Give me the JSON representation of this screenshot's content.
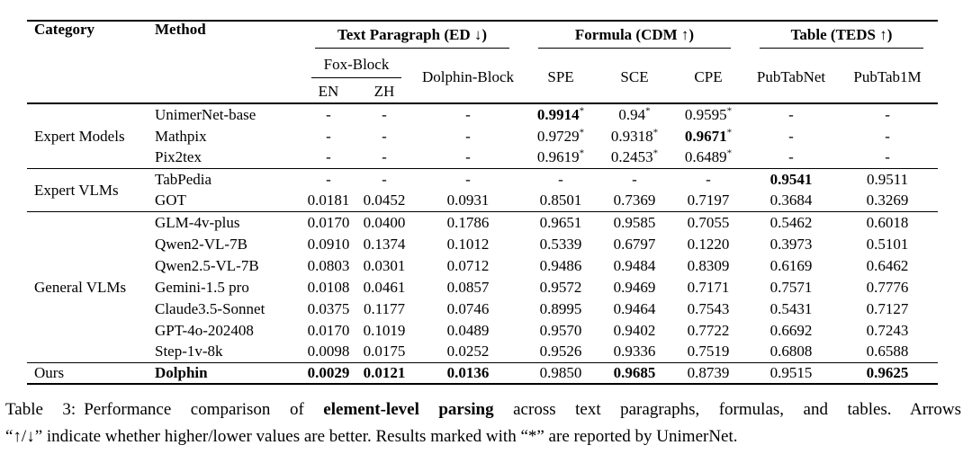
{
  "table": {
    "headers": {
      "category": "Category",
      "method": "Method",
      "fox_block": "Fox-Block",
      "en": "EN",
      "zh": "ZH",
      "dolphin_block": "Dolphin-Block",
      "spe": "SPE",
      "sce": "SCE",
      "cpe": "CPE",
      "pubtabnet": "PubTabNet",
      "pubtab1m": "PubTab1M"
    },
    "column_groups": [
      {
        "label": "Text Paragraph (ED ↓)"
      },
      {
        "label": "Formula (CDM ↑)"
      },
      {
        "label": "Table (TEDS ↑)"
      }
    ],
    "groups": [
      {
        "category": "Expert Models",
        "rows": [
          {
            "method": "UnimerNet-base",
            "cells": [
              {
                "t": "-"
              },
              {
                "t": "-"
              },
              {
                "t": "-"
              },
              {
                "t": "0.9914",
                "b": true,
                "star": true
              },
              {
                "t": "0.94",
                "star": true
              },
              {
                "t": "0.9595",
                "star": true
              },
              {
                "t": "-"
              },
              {
                "t": "-"
              }
            ]
          },
          {
            "method": "Mathpix",
            "cells": [
              {
                "t": "-"
              },
              {
                "t": "-"
              },
              {
                "t": "-"
              },
              {
                "t": "0.9729",
                "star": true
              },
              {
                "t": "0.9318",
                "star": true
              },
              {
                "t": "0.9671",
                "b": true,
                "star": true
              },
              {
                "t": "-"
              },
              {
                "t": "-"
              }
            ]
          },
          {
            "method": "Pix2tex",
            "cells": [
              {
                "t": "-"
              },
              {
                "t": "-"
              },
              {
                "t": "-"
              },
              {
                "t": "0.9619",
                "star": true
              },
              {
                "t": "0.2453",
                "star": true
              },
              {
                "t": "0.6489",
                "star": true
              },
              {
                "t": "-"
              },
              {
                "t": "-"
              }
            ]
          }
        ]
      },
      {
        "category": "Expert VLMs",
        "rows": [
          {
            "method": "TabPedia",
            "cells": [
              {
                "t": "-"
              },
              {
                "t": "-"
              },
              {
                "t": "-"
              },
              {
                "t": "-"
              },
              {
                "t": "-"
              },
              {
                "t": "-"
              },
              {
                "t": "0.9541",
                "b": true
              },
              {
                "t": "0.9511"
              }
            ]
          },
          {
            "method": "GOT",
            "cells": [
              {
                "t": "0.0181"
              },
              {
                "t": "0.0452"
              },
              {
                "t": "0.0931"
              },
              {
                "t": "0.8501"
              },
              {
                "t": "0.7369"
              },
              {
                "t": "0.7197"
              },
              {
                "t": "0.3684"
              },
              {
                "t": "0.3269"
              }
            ]
          }
        ]
      },
      {
        "category": "General VLMs",
        "rows": [
          {
            "method": "GLM-4v-plus",
            "cells": [
              {
                "t": "0.0170"
              },
              {
                "t": "0.0400"
              },
              {
                "t": "0.1786"
              },
              {
                "t": "0.9651"
              },
              {
                "t": "0.9585"
              },
              {
                "t": "0.7055"
              },
              {
                "t": "0.5462"
              },
              {
                "t": "0.6018"
              }
            ]
          },
          {
            "method": "Qwen2-VL-7B",
            "cells": [
              {
                "t": "0.0910"
              },
              {
                "t": "0.1374"
              },
              {
                "t": "0.1012"
              },
              {
                "t": "0.5339"
              },
              {
                "t": "0.6797"
              },
              {
                "t": "0.1220"
              },
              {
                "t": "0.3973"
              },
              {
                "t": "0.5101"
              }
            ]
          },
          {
            "method": "Qwen2.5-VL-7B",
            "cells": [
              {
                "t": "0.0803"
              },
              {
                "t": "0.0301"
              },
              {
                "t": "0.0712"
              },
              {
                "t": "0.9486"
              },
              {
                "t": "0.9484"
              },
              {
                "t": "0.8309"
              },
              {
                "t": "0.6169"
              },
              {
                "t": "0.6462"
              }
            ]
          },
          {
            "method": "Gemini-1.5 pro",
            "cells": [
              {
                "t": "0.0108"
              },
              {
                "t": "0.0461"
              },
              {
                "t": "0.0857"
              },
              {
                "t": "0.9572"
              },
              {
                "t": "0.9469"
              },
              {
                "t": "0.7171"
              },
              {
                "t": "0.7571"
              },
              {
                "t": "0.7776"
              }
            ]
          },
          {
            "method": "Claude3.5-Sonnet",
            "cells": [
              {
                "t": "0.0375"
              },
              {
                "t": "0.1177"
              },
              {
                "t": "0.0746"
              },
              {
                "t": "0.8995"
              },
              {
                "t": "0.9464"
              },
              {
                "t": "0.7543"
              },
              {
                "t": "0.5431"
              },
              {
                "t": "0.7127"
              }
            ]
          },
          {
            "method": "GPT-4o-202408",
            "cells": [
              {
                "t": "0.0170"
              },
              {
                "t": "0.1019"
              },
              {
                "t": "0.0489"
              },
              {
                "t": "0.9570"
              },
              {
                "t": "0.9402"
              },
              {
                "t": "0.7722"
              },
              {
                "t": "0.6692"
              },
              {
                "t": "0.7243"
              }
            ]
          },
          {
            "method": "Step-1v-8k",
            "cells": [
              {
                "t": "0.0098"
              },
              {
                "t": "0.0175"
              },
              {
                "t": "0.0252"
              },
              {
                "t": "0.9526"
              },
              {
                "t": "0.9336"
              },
              {
                "t": "0.7519"
              },
              {
                "t": "0.6808"
              },
              {
                "t": "0.6588"
              }
            ]
          }
        ]
      },
      {
        "category": "Ours",
        "rows": [
          {
            "method": "Dolphin",
            "bold": true,
            "cells": [
              {
                "t": "0.0029",
                "b": true
              },
              {
                "t": "0.0121",
                "b": true
              },
              {
                "t": "0.0136",
                "b": true
              },
              {
                "t": "0.9850"
              },
              {
                "t": "0.9685",
                "b": true
              },
              {
                "t": "0.8739"
              },
              {
                "t": "0.9515"
              },
              {
                "t": "0.9625",
                "b": true
              }
            ]
          }
        ]
      }
    ]
  },
  "caption": {
    "label": "Table 3:",
    "line1_before_bold": "Performance comparison of",
    "line1_bold": "element-level parsing",
    "line1_after_bold": "across text paragraphs, formulas, and tables. Arrows",
    "line2": "“↑/↓” indicate whether higher/lower values are better. Results marked with “*” are reported by UnimerNet."
  }
}
